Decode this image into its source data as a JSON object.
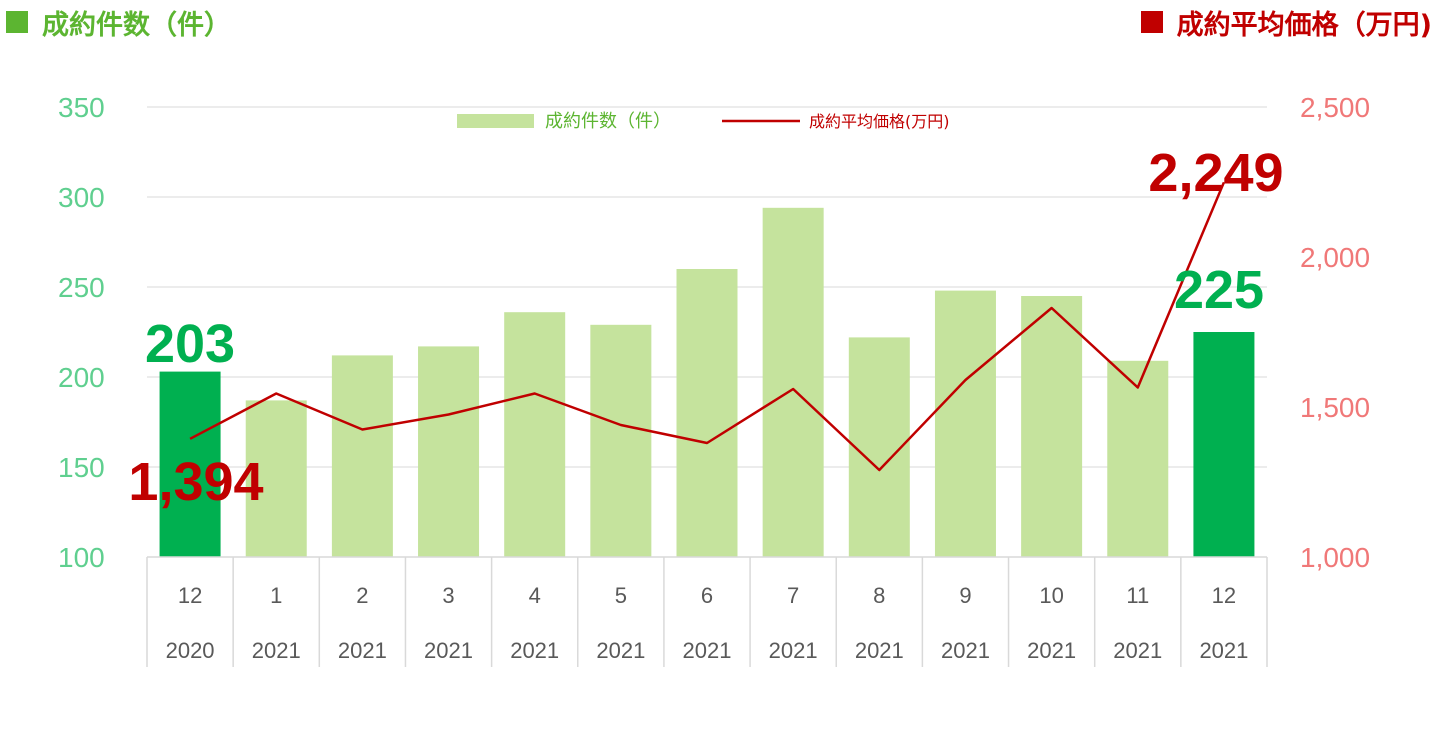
{
  "header": {
    "left_title": "成約件数（件）",
    "right_title": "成約平均価格（万円)"
  },
  "chart_data": {
    "type": "bar",
    "categories": [
      {
        "month": "12",
        "year": "2020"
      },
      {
        "month": "1",
        "year": "2021"
      },
      {
        "month": "2",
        "year": "2021"
      },
      {
        "month": "3",
        "year": "2021"
      },
      {
        "month": "4",
        "year": "2021"
      },
      {
        "month": "5",
        "year": "2021"
      },
      {
        "month": "6",
        "year": "2021"
      },
      {
        "month": "7",
        "year": "2021"
      },
      {
        "month": "8",
        "year": "2021"
      },
      {
        "month": "9",
        "year": "2021"
      },
      {
        "month": "10",
        "year": "2021"
      },
      {
        "month": "11",
        "year": "2021"
      },
      {
        "month": "12",
        "year": "2021"
      }
    ],
    "series": [
      {
        "name": "成約件数（件）",
        "type": "bar",
        "axis": "left",
        "values": [
          203,
          187,
          212,
          217,
          236,
          229,
          260,
          294,
          222,
          248,
          245,
          209,
          225
        ],
        "highlight_indices": [
          0,
          12
        ],
        "color": "#c5e39d",
        "highlight_color": "#00b050"
      },
      {
        "name": "成約平均価格(万円)",
        "type": "line",
        "axis": "right",
        "values": [
          1394,
          1545,
          1425,
          1475,
          1545,
          1440,
          1380,
          1560,
          1290,
          1590,
          1830,
          1565,
          2249
        ],
        "color": "#c00000"
      }
    ],
    "left_axis": {
      "min": 100,
      "max": 350,
      "ticks": [
        "100",
        "150",
        "200",
        "250",
        "300",
        "350"
      ]
    },
    "right_axis": {
      "min": 1000,
      "max": 2500,
      "ticks": [
        "1,000",
        "1,500",
        "2,000",
        "2,500"
      ]
    },
    "data_labels": [
      {
        "series": 0,
        "index": 0,
        "text": "203"
      },
      {
        "series": 0,
        "index": 12,
        "text": "225"
      },
      {
        "series": 1,
        "index": 0,
        "text": "1,394"
      },
      {
        "series": 1,
        "index": 12,
        "text": "2,249"
      }
    ],
    "grid": true,
    "legend_position": "top-center"
  }
}
